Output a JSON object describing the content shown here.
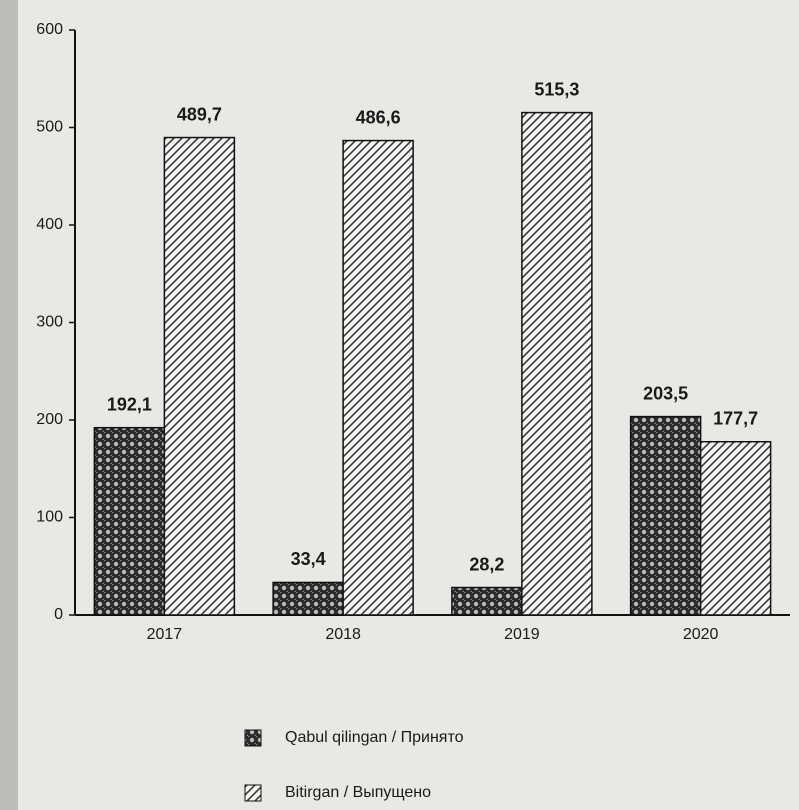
{
  "chart_data": {
    "type": "bar",
    "categories": [
      "2017",
      "2018",
      "2019",
      "2020"
    ],
    "series": [
      {
        "name": "Qabul qilingan / Принято",
        "color": "#2b2b2b",
        "values": [
          192.1,
          33.4,
          28.2,
          203.5
        ],
        "value_labels": [
          "192,1",
          "33,4",
          "28,2",
          "203,5"
        ]
      },
      {
        "name": "Bitirgan / Выпущено",
        "color": "#3a3a3a",
        "values": [
          489.7,
          486.6,
          515.3,
          177.7
        ],
        "value_labels": [
          "489,7",
          "486,6",
          "515,3",
          "177,7"
        ]
      }
    ],
    "ylim": [
      0,
      600
    ],
    "yticks": [
      0,
      100,
      200,
      300,
      400,
      500,
      600
    ],
    "grid": false,
    "legend": "bottom"
  }
}
